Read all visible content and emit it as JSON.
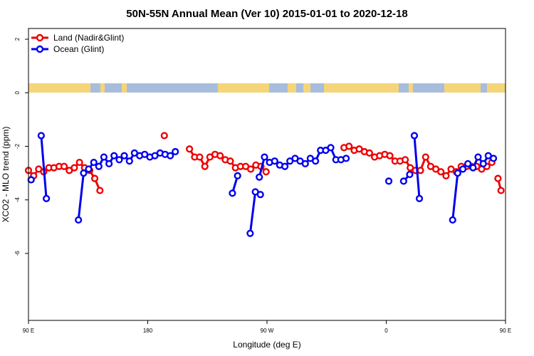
{
  "chart_data": {
    "type": "line",
    "title": "50N-55N Annual Mean (Ver 10)   2015-01-01 to 2020-12-18",
    "xlabel": "Longitude (deg E)",
    "ylabel": "XCO2 - MLO trend (ppm)",
    "xlim": [
      90,
      450
    ],
    "ylim": [
      -8.5,
      2.4
    ],
    "x_ticks": [
      {
        "value": 90,
        "label": "90 E"
      },
      {
        "value": 180,
        "label": "180"
      },
      {
        "value": 270,
        "label": "90 W"
      },
      {
        "value": 360,
        "label": "0"
      },
      {
        "value": 450,
        "label": "90 E"
      },
      {
        "value": 540,
        "label": "180"
      }
    ],
    "y_ticks": [
      {
        "value": 2,
        "label": "2"
      },
      {
        "value": 0,
        "label": "0"
      },
      {
        "value": -2,
        "label": "-2"
      },
      {
        "value": -4,
        "label": "-4"
      },
      {
        "value": -6,
        "label": "-6"
      }
    ],
    "legend_position": "top-left",
    "grid": false,
    "land_ocean_strip": {
      "land_color": "#f5d57a",
      "ocean_color": "#a7bddb"
    },
    "series": [
      {
        "name": "Land (Nadir&Glint)",
        "color": "#ee0000",
        "segments": [
          [
            [
              90.0,
              -2.9
            ],
            [
              93.9,
              -3.1
            ],
            [
              97.7,
              -2.85
            ],
            [
              101.5,
              -2.95
            ],
            [
              105.4,
              -2.8
            ],
            [
              109.2,
              -2.8
            ],
            [
              113.1,
              -2.75
            ],
            [
              116.9,
              -2.75
            ],
            [
              120.8,
              -2.9
            ],
            [
              124.6,
              -2.8
            ],
            [
              128.5,
              -2.6
            ],
            [
              132.3,
              -2.8
            ],
            [
              136.2,
              -2.9
            ],
            [
              140.0,
              -3.2
            ],
            [
              143.9,
              -3.65
            ]
          ],
          [
            [
              192.5,
              -1.6
            ]
          ],
          [
            [
              211.5,
              -2.1
            ],
            [
              215.4,
              -2.4
            ],
            [
              219.2,
              -2.4
            ],
            [
              223.1,
              -2.75
            ],
            [
              226.9,
              -2.4
            ],
            [
              230.8,
              -2.3
            ],
            [
              234.6,
              -2.35
            ],
            [
              238.5,
              -2.5
            ],
            [
              242.3,
              -2.55
            ],
            [
              246.2,
              -2.8
            ],
            [
              250.0,
              -2.75
            ],
            [
              253.9,
              -2.75
            ],
            [
              257.7,
              -2.85
            ],
            [
              261.6,
              -2.7
            ],
            [
              265.4,
              -2.75
            ],
            [
              269.3,
              -2.95
            ]
          ],
          [
            [
              328.1,
              -2.05
            ],
            [
              331.9,
              -2.0
            ],
            [
              335.8,
              -2.15
            ],
            [
              339.6,
              -2.1
            ],
            [
              343.5,
              -2.2
            ],
            [
              347.3,
              -2.25
            ],
            [
              351.2,
              -2.4
            ],
            [
              355.0,
              -2.35
            ],
            [
              358.9,
              -2.3
            ],
            [
              362.7,
              -2.35
            ],
            [
              366.6,
              -2.55
            ],
            [
              370.4,
              -2.55
            ],
            [
              374.3,
              -2.5
            ],
            [
              378.1,
              -2.8
            ],
            [
              382.0,
              -2.9
            ],
            [
              385.8,
              -2.9
            ],
            [
              389.7,
              -2.4
            ],
            [
              393.5,
              -2.75
            ],
            [
              397.4,
              -2.85
            ],
            [
              401.2,
              -2.95
            ],
            [
              405.1,
              -3.1
            ],
            [
              408.9,
              -2.85
            ],
            [
              412.8,
              -2.95
            ],
            [
              416.6,
              -2.75
            ],
            [
              420.5,
              -2.75
            ],
            [
              424.3,
              -2.75
            ],
            [
              428.2,
              -2.75
            ],
            [
              432.0,
              -2.85
            ],
            [
              435.9,
              -2.75
            ],
            [
              439.7,
              -2.6
            ]
          ],
          [
            [
              444.3,
              -3.2
            ],
            [
              446.6,
              -3.65
            ]
          ]
        ]
      },
      {
        "name": "Ocean (Glint)",
        "color": "#0000ee",
        "segments": [
          [
            [
              92.0,
              -3.25
            ]
          ],
          [
            [
              99.6,
              -1.6
            ],
            [
              103.5,
              -3.95
            ]
          ],
          [
            [
              127.7,
              -4.75
            ],
            [
              131.6,
              -3.0
            ],
            [
              135.4,
              -2.85
            ],
            [
              139.3,
              -2.6
            ],
            [
              143.1,
              -2.75
            ],
            [
              146.9,
              -2.4
            ],
            [
              150.8,
              -2.65
            ],
            [
              154.6,
              -2.35
            ],
            [
              158.5,
              -2.5
            ],
            [
              162.3,
              -2.35
            ],
            [
              166.2,
              -2.55
            ],
            [
              170.0,
              -2.25
            ],
            [
              173.9,
              -2.35
            ],
            [
              177.7,
              -2.3
            ],
            [
              181.6,
              -2.4
            ],
            [
              185.4,
              -2.35
            ],
            [
              189.3,
              -2.25
            ],
            [
              193.1,
              -2.3
            ],
            [
              197.0,
              -2.35
            ],
            [
              200.8,
              -2.2
            ]
          ],
          [
            [
              243.9,
              -3.75
            ],
            [
              247.8,
              -3.1
            ]
          ],
          [
            [
              257.3,
              -5.25
            ],
            [
              261.2,
              -3.7
            ],
            [
              265.0,
              -3.8
            ]
          ],
          [
            [
              264.2,
              -3.15
            ],
            [
              268.1,
              -2.4
            ],
            [
              271.9,
              -2.6
            ],
            [
              275.8,
              -2.55
            ],
            [
              279.6,
              -2.7
            ],
            [
              283.5,
              -2.75
            ],
            [
              287.3,
              -2.55
            ],
            [
              291.2,
              -2.45
            ],
            [
              295.0,
              -2.55
            ],
            [
              298.9,
              -2.65
            ],
            [
              302.7,
              -2.45
            ],
            [
              306.6,
              -2.55
            ],
            [
              310.4,
              -2.15
            ],
            [
              314.3,
              -2.15
            ],
            [
              318.1,
              -2.05
            ],
            [
              322.0,
              -2.5
            ],
            [
              325.8,
              -2.5
            ],
            [
              329.7,
              -2.45
            ]
          ],
          [
            [
              361.9,
              -3.3
            ]
          ],
          [
            [
              373.1,
              -3.3
            ],
            [
              377.7,
              -3.05
            ]
          ],
          [
            [
              381.2,
              -1.6
            ],
            [
              385.0,
              -3.95
            ]
          ],
          [
            [
              410.1,
              -4.75
            ],
            [
              413.9,
              -3.0
            ],
            [
              417.8,
              -2.85
            ],
            [
              421.6,
              -2.65
            ],
            [
              425.5,
              -2.8
            ],
            [
              429.3,
              -2.4
            ],
            [
              433.2,
              -2.65
            ],
            [
              437.0,
              -2.35
            ],
            [
              440.9,
              -2.45
            ]
          ]
        ]
      }
    ]
  }
}
